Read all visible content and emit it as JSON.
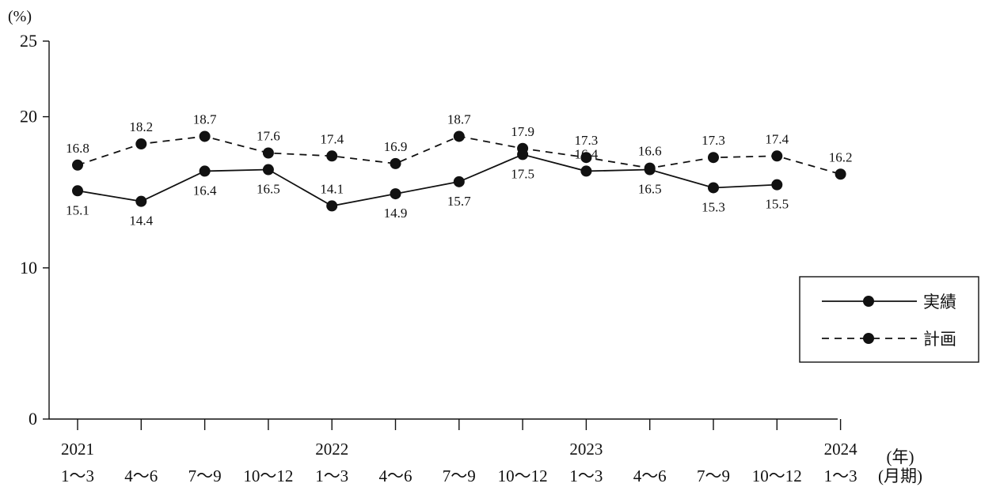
{
  "chart_data": {
    "type": "line",
    "ylabel": "(%)",
    "ylim": [
      0,
      25
    ],
    "yticks": [
      0,
      10,
      20,
      25
    ],
    "x_unit_year": "(年)",
    "x_unit_period": "(月期)",
    "categories": [
      {
        "year": "2021",
        "period": "1～3"
      },
      {
        "year": "",
        "period": "4～6"
      },
      {
        "year": "",
        "period": "7～9"
      },
      {
        "year": "",
        "period": "10～12"
      },
      {
        "year": "2022",
        "period": "1～3"
      },
      {
        "year": "",
        "period": "4～6"
      },
      {
        "year": "",
        "period": "7～9"
      },
      {
        "year": "",
        "period": "10～12"
      },
      {
        "year": "2023",
        "period": "1～3"
      },
      {
        "year": "",
        "period": "4～6"
      },
      {
        "year": "",
        "period": "7～9"
      },
      {
        "year": "",
        "period": "10～12"
      },
      {
        "year": "2024",
        "period": "1～3"
      }
    ],
    "series": [
      {
        "name": "実績",
        "style": "solid",
        "values": [
          15.1,
          14.4,
          16.4,
          16.5,
          14.1,
          14.9,
          15.7,
          17.5,
          16.4,
          16.5,
          15.3,
          15.5,
          null
        ],
        "labels": [
          "15.1",
          "14.4",
          "16.4",
          "16.5",
          "14.1",
          "14.9",
          "15.7",
          "17.5",
          "16.4",
          "16.5",
          "15.3",
          "15.5",
          ""
        ]
      },
      {
        "name": "計画",
        "style": "dashed",
        "values": [
          16.8,
          18.2,
          18.7,
          17.6,
          17.4,
          16.9,
          18.7,
          17.9,
          17.3,
          16.6,
          17.3,
          17.4,
          16.2
        ],
        "labels": [
          "16.8",
          "18.2",
          "18.7",
          "17.6",
          "17.4",
          "16.9",
          "18.7",
          "17.9",
          "17.3",
          "16.6",
          "17.3",
          "17.4",
          "16.2"
        ]
      }
    ],
    "legend": {
      "position": "right",
      "entries": [
        "実績",
        "計画"
      ]
    },
    "grid": false,
    "line_color": "#111111"
  }
}
